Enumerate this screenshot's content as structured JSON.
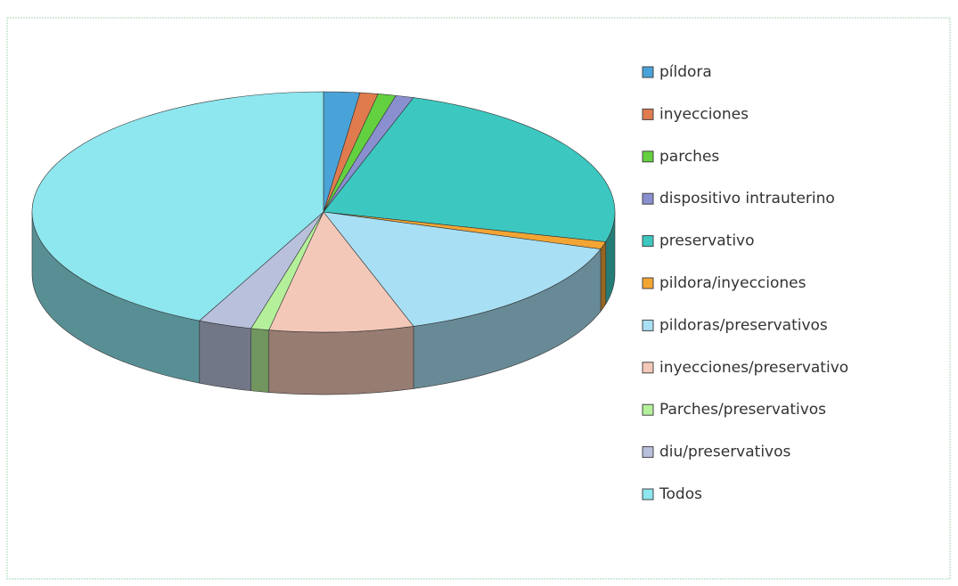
{
  "chart_data": {
    "type": "pie",
    "categories": [
      "píldora",
      "inyecciones",
      "parches",
      "dispositivo intrauterino",
      "preservativo",
      "pildora/inyecciones",
      "pildoras/preservativos",
      "inyecciones/preservativo",
      "Parches/preservativos",
      "diu/preservativos",
      "Todos"
    ],
    "values": [
      2,
      1,
      1,
      1,
      24,
      1,
      15,
      8,
      1,
      3,
      43
    ],
    "colors": [
      "#4aa3d8",
      "#e07b4e",
      "#63d040",
      "#8a8fd0",
      "#3cc8c0",
      "#f3a533",
      "#a8dff4",
      "#f4c8b8",
      "#b4f09a",
      "#b8c0dc",
      "#8ee6ee"
    ],
    "legend": "right"
  }
}
